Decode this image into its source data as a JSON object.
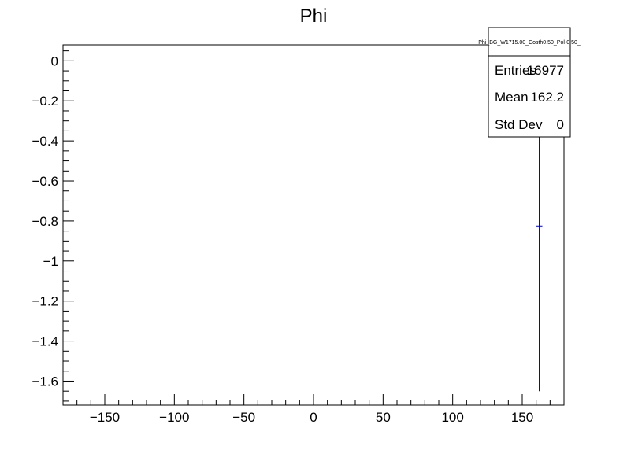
{
  "chart_data": {
    "type": "scatter",
    "title": "Phi",
    "xlabel": "",
    "ylabel": "",
    "xlim": [
      -180,
      180
    ],
    "ylim": [
      -1.72,
      0.08
    ],
    "x_ticks": [
      -150,
      -100,
      -50,
      0,
      50,
      100,
      150
    ],
    "x_tick_labels": [
      "−150",
      "−100",
      "−50",
      "0",
      "50",
      "100",
      "150"
    ],
    "y_ticks": [
      0,
      -0.2,
      -0.4,
      -0.6,
      -0.8,
      -1,
      -1.2,
      -1.4,
      -1.6
    ],
    "y_tick_labels": [
      "0",
      "−0.2",
      "−0.4",
      "−0.6",
      "−0.8",
      "−1",
      "−1.2",
      "−1.4",
      "−1.6"
    ],
    "grid": false,
    "series": [
      {
        "points": [
          {
            "x": 162.2,
            "y": -0.825,
            "y_low": -1.65,
            "y_high": 0.08
          }
        ],
        "color": "#0000cc",
        "error_color": "#000080"
      }
    ],
    "stats_box": {
      "name": "Phi_BG_W1715.00_Costh0.50_Pol-0.50_",
      "rows": [
        {
          "label": "Entries",
          "value": "16977"
        },
        {
          "label": "Mean",
          "value": "162.2"
        },
        {
          "label": "Std Dev",
          "value": "0"
        }
      ]
    }
  }
}
